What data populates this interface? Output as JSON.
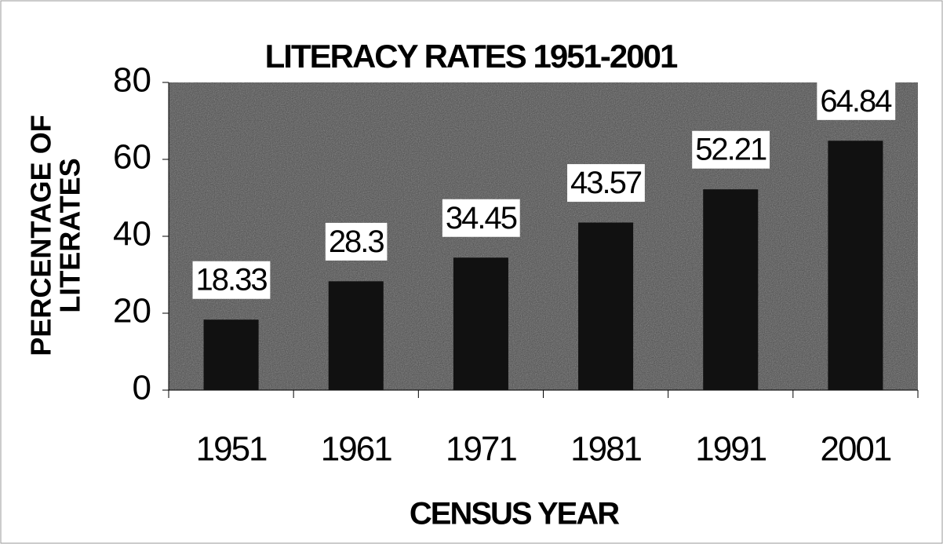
{
  "chart_data": {
    "type": "bar",
    "title": "LITERACY RATES 1951-2001",
    "x_label": "CENSUS YEAR",
    "y_label": [
      "PERCENTAGE OF",
      "LITERATES"
    ],
    "categories": [
      "1951",
      "1961",
      "1971",
      "1981",
      "1991",
      "2001"
    ],
    "values": [
      18.33,
      28.3,
      34.45,
      43.57,
      52.21,
      64.84
    ],
    "color": "#111111",
    "ylim": [
      0,
      80
    ],
    "yticks": [
      0,
      20,
      40,
      60,
      80
    ]
  }
}
